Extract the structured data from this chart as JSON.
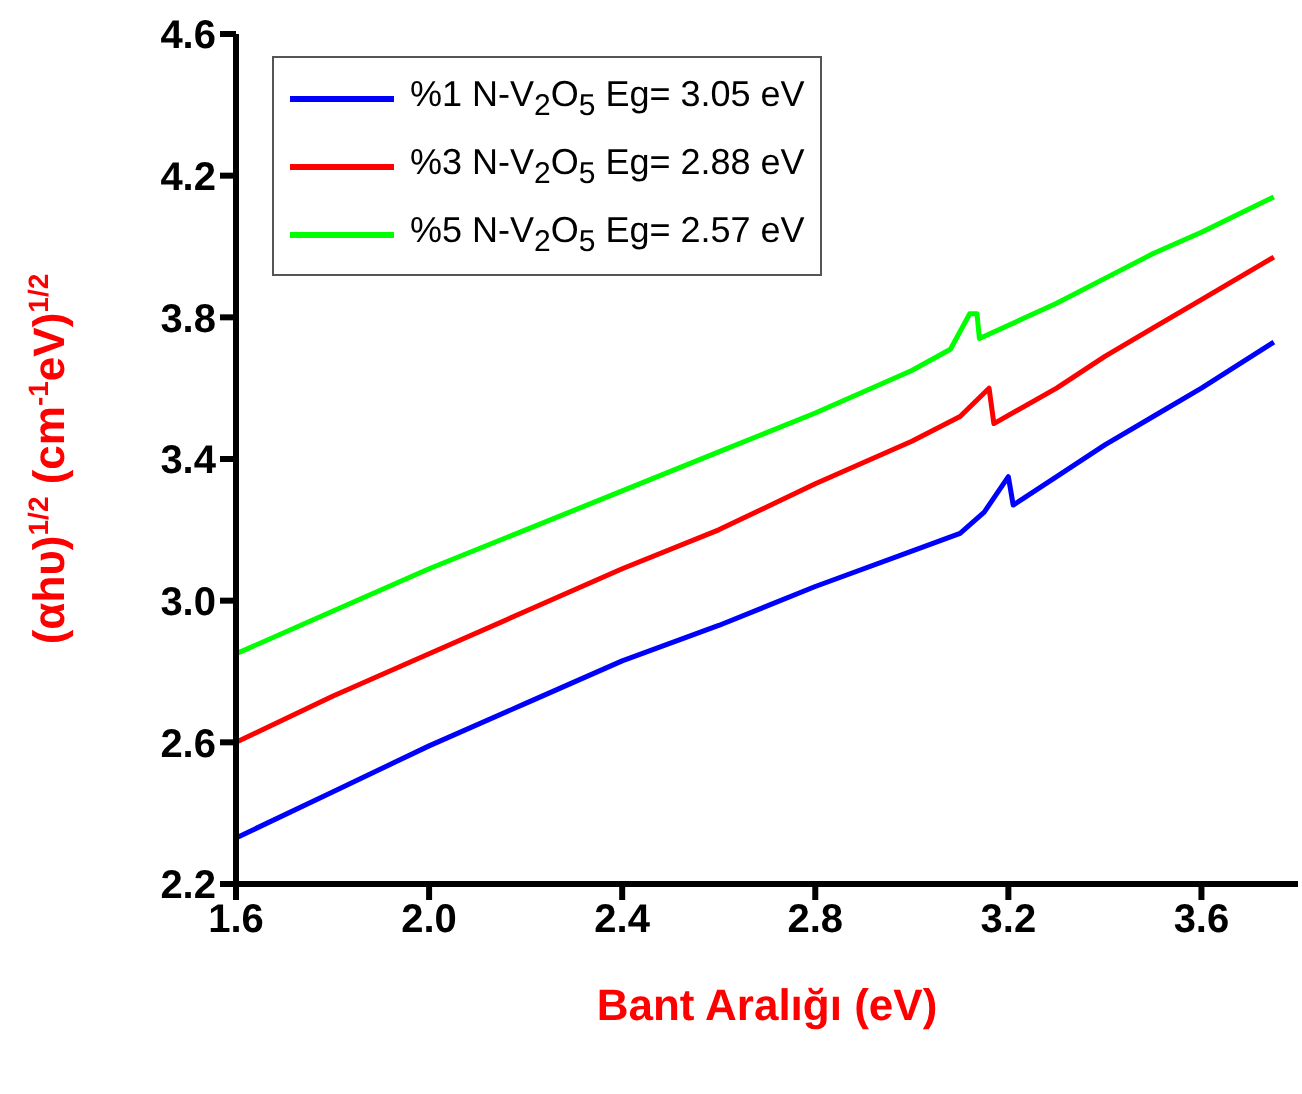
{
  "chart_data": {
    "type": "line",
    "xlabel": "Bant Aralığı (eV)",
    "ylabel": "(αhυ)$^{1/2}$ (cm$^{-1}$eV)$^{1/2}$",
    "xlim": [
      1.6,
      3.8
    ],
    "xticks": [
      1.6,
      {
        "value": 2,
        "label": "2.0"
      },
      2.4,
      2.8,
      3.2,
      3.6
    ],
    "ylim": [
      2.2,
      4.6
    ],
    "yticks": [
      2.2,
      2.6,
      {
        "value": 3,
        "label": "3.0"
      },
      3.4,
      3.8,
      4.2,
      4.6
    ],
    "legend": "top left",
    "grid": false,
    "marker": "none",
    "line_style": "solid",
    "series": [
      {
        "name": "%1 N-V$_{2}$O$_{5}$ Eg= 3.05 eV",
        "color": "#0000ff",
        "x": [
          1.6,
          1.8,
          2.0,
          2.2,
          2.4,
          2.6,
          2.8,
          3.0,
          3.1,
          3.15,
          3.2,
          3.21,
          3.3,
          3.4,
          3.5,
          3.6,
          3.75
        ],
        "values": [
          2.33,
          2.46,
          2.59,
          2.71,
          2.83,
          2.93,
          3.04,
          3.14,
          3.19,
          3.25,
          3.35,
          3.27,
          3.35,
          3.44,
          3.52,
          3.6,
          3.73
        ]
      },
      {
        "name": "%3 N-V$_{2}$O$_{5}$ Eg= 2.88 eV",
        "color": "#ff0000",
        "x": [
          1.6,
          1.8,
          2.0,
          2.2,
          2.4,
          2.6,
          2.8,
          3.0,
          3.1,
          3.16,
          3.17,
          3.3,
          3.4,
          3.5,
          3.6,
          3.75
        ],
        "values": [
          2.6,
          2.73,
          2.85,
          2.97,
          3.09,
          3.2,
          3.33,
          3.45,
          3.52,
          3.6,
          3.5,
          3.6,
          3.69,
          3.77,
          3.85,
          3.97
        ]
      },
      {
        "name": "%5 N-V$_{2}$O$_{5}$ Eg= 2.57 eV",
        "color": "#00ff00",
        "x": [
          1.6,
          1.8,
          2.0,
          2.2,
          2.4,
          2.6,
          2.8,
          3.0,
          3.08,
          3.12,
          3.135,
          3.14,
          3.3,
          3.4,
          3.5,
          3.6,
          3.75
        ],
        "values": [
          2.85,
          2.97,
          3.09,
          3.2,
          3.31,
          3.42,
          3.53,
          3.65,
          3.71,
          3.81,
          3.81,
          3.74,
          3.84,
          3.91,
          3.98,
          4.04,
          4.14
        ]
      }
    ]
  }
}
